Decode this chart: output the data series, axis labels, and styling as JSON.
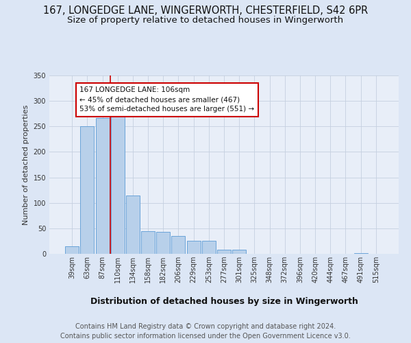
{
  "title1": "167, LONGEDGE LANE, WINGERWORTH, CHESTERFIELD, S42 6PR",
  "title2": "Size of property relative to detached houses in Wingerworth",
  "xlabel": "Distribution of detached houses by size in Wingerworth",
  "ylabel": "Number of detached properties",
  "categories": [
    "39sqm",
    "63sqm",
    "87sqm",
    "110sqm",
    "134sqm",
    "158sqm",
    "182sqm",
    "206sqm",
    "229sqm",
    "253sqm",
    "277sqm",
    "301sqm",
    "325sqm",
    "348sqm",
    "372sqm",
    "396sqm",
    "420sqm",
    "444sqm",
    "467sqm",
    "491sqm",
    "515sqm"
  ],
  "values": [
    15,
    250,
    267,
    270,
    115,
    45,
    43,
    35,
    25,
    25,
    8,
    8,
    0,
    0,
    0,
    0,
    0,
    0,
    0,
    2,
    0
  ],
  "bar_color": "#b8d0ea",
  "bar_edge_color": "#5b9bd5",
  "vline_x_index": 2.5,
  "vline_color": "#cc0000",
  "annotation_text": "167 LONGEDGE LANE: 106sqm\n← 45% of detached houses are smaller (467)\n53% of semi-detached houses are larger (551) →",
  "annotation_box_facecolor": "#ffffff",
  "annotation_box_edgecolor": "#cc0000",
  "bg_color": "#dce6f5",
  "plot_bg_color": "#e8eef8",
  "footnote": "Contains HM Land Registry data © Crown copyright and database right 2024.\nContains public sector information licensed under the Open Government Licence v3.0.",
  "ylim": [
    0,
    350
  ],
  "yticks": [
    0,
    50,
    100,
    150,
    200,
    250,
    300,
    350
  ],
  "title_fontsize": 10.5,
  "subtitle_fontsize": 9.5,
  "axis_label_fontsize": 8,
  "tick_fontsize": 7,
  "footnote_fontsize": 7
}
